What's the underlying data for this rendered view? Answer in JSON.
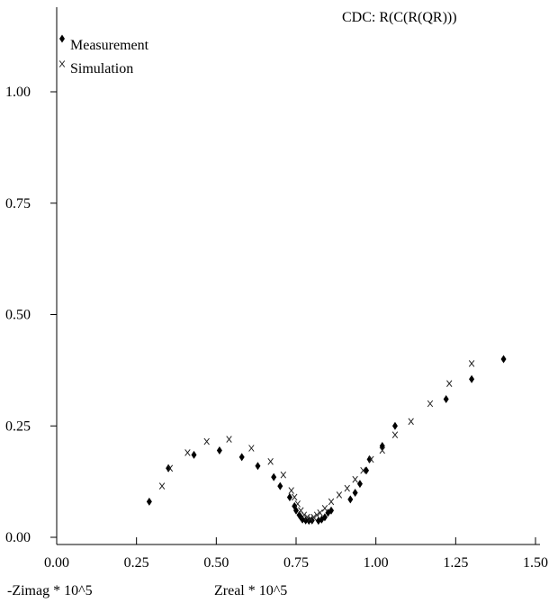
{
  "chart_data": {
    "type": "scatter",
    "title": "CDC: R(C(R(QR)))",
    "xlabel": "Zreal * 10^5",
    "ylabel": "-Zimag * 10^5",
    "xlim": [
      0,
      1.5
    ],
    "ylim": [
      0,
      1.0
    ],
    "grid": false,
    "legend_position": "top-left",
    "x_ticks": [
      "0.00",
      "0.25",
      "0.50",
      "0.75",
      "1.00",
      "1.25",
      "1.50"
    ],
    "y_ticks": [
      "0.00",
      "0.25",
      "0.50",
      "0.75",
      "1.00"
    ],
    "series": [
      {
        "name": "Measurement",
        "marker": "diamond",
        "color": "#000000",
        "points": [
          [
            0.29,
            0.08
          ],
          [
            0.35,
            0.155
          ],
          [
            0.43,
            0.185
          ],
          [
            0.51,
            0.195
          ],
          [
            0.58,
            0.18
          ],
          [
            0.63,
            0.16
          ],
          [
            0.68,
            0.135
          ],
          [
            0.7,
            0.115
          ],
          [
            0.73,
            0.09
          ],
          [
            0.745,
            0.07
          ],
          [
            0.75,
            0.06
          ],
          [
            0.76,
            0.05
          ],
          [
            0.765,
            0.045
          ],
          [
            0.77,
            0.04
          ],
          [
            0.78,
            0.038
          ],
          [
            0.79,
            0.037
          ],
          [
            0.8,
            0.038
          ],
          [
            0.82,
            0.037
          ],
          [
            0.83,
            0.04
          ],
          [
            0.84,
            0.045
          ],
          [
            0.85,
            0.055
          ],
          [
            0.86,
            0.06
          ],
          [
            0.92,
            0.085
          ],
          [
            0.935,
            0.1
          ],
          [
            0.95,
            0.12
          ],
          [
            0.97,
            0.15
          ],
          [
            0.98,
            0.175
          ],
          [
            1.02,
            0.205
          ],
          [
            1.06,
            0.25
          ],
          [
            1.22,
            0.31
          ],
          [
            1.3,
            0.355
          ],
          [
            1.4,
            0.4
          ]
        ]
      },
      {
        "name": "Simulation",
        "marker": "x",
        "color": "#222222",
        "points": [
          [
            0.33,
            0.115
          ],
          [
            0.355,
            0.155
          ],
          [
            0.41,
            0.19
          ],
          [
            0.47,
            0.215
          ],
          [
            0.54,
            0.22
          ],
          [
            0.61,
            0.2
          ],
          [
            0.67,
            0.17
          ],
          [
            0.71,
            0.14
          ],
          [
            0.735,
            0.105
          ],
          [
            0.745,
            0.09
          ],
          [
            0.755,
            0.075
          ],
          [
            0.765,
            0.06
          ],
          [
            0.775,
            0.05
          ],
          [
            0.785,
            0.045
          ],
          [
            0.795,
            0.042
          ],
          [
            0.805,
            0.045
          ],
          [
            0.815,
            0.05
          ],
          [
            0.825,
            0.055
          ],
          [
            0.84,
            0.065
          ],
          [
            0.86,
            0.08
          ],
          [
            0.885,
            0.095
          ],
          [
            0.91,
            0.11
          ],
          [
            0.935,
            0.13
          ],
          [
            0.96,
            0.15
          ],
          [
            0.985,
            0.175
          ],
          [
            1.02,
            0.195
          ],
          [
            1.06,
            0.23
          ],
          [
            1.11,
            0.26
          ],
          [
            1.17,
            0.3
          ],
          [
            1.23,
            0.345
          ],
          [
            1.3,
            0.39
          ]
        ]
      }
    ]
  }
}
